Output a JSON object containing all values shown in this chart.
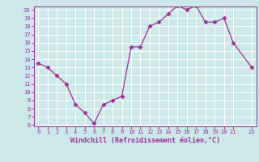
{
  "x": [
    0,
    1,
    2,
    3,
    4,
    5,
    6,
    7,
    8,
    9,
    10,
    11,
    12,
    13,
    14,
    15,
    16,
    17,
    18,
    19,
    20,
    21,
    23
  ],
  "y": [
    13.5,
    13.0,
    12.0,
    11.0,
    8.5,
    7.5,
    6.2,
    8.5,
    9.0,
    9.5,
    15.5,
    15.5,
    18.0,
    18.5,
    19.5,
    20.5,
    20.0,
    20.5,
    18.5,
    18.5,
    19.0,
    16.0,
    13.0
  ],
  "line_color": "#993399",
  "marker": "D",
  "marker_size": 2.5,
  "bg_color": "#cce8e8",
  "grid_color": "#ffffff",
  "xlabel": "Windchill (Refroidissement éolien,°C)",
  "xlabel_color": "#993399",
  "tick_color": "#993399",
  "label_color": "#993399",
  "ylim": [
    6,
    20
  ],
  "xlim": [
    -0.5,
    23.5
  ],
  "yticks": [
    6,
    7,
    8,
    9,
    10,
    11,
    12,
    13,
    14,
    15,
    16,
    17,
    18,
    19,
    20
  ],
  "xticks": [
    0,
    1,
    2,
    3,
    4,
    5,
    6,
    7,
    8,
    9,
    10,
    11,
    12,
    13,
    14,
    15,
    16,
    17,
    18,
    19,
    20,
    21,
    23
  ],
  "figsize": [
    3.2,
    2.0
  ],
  "dpi": 100
}
